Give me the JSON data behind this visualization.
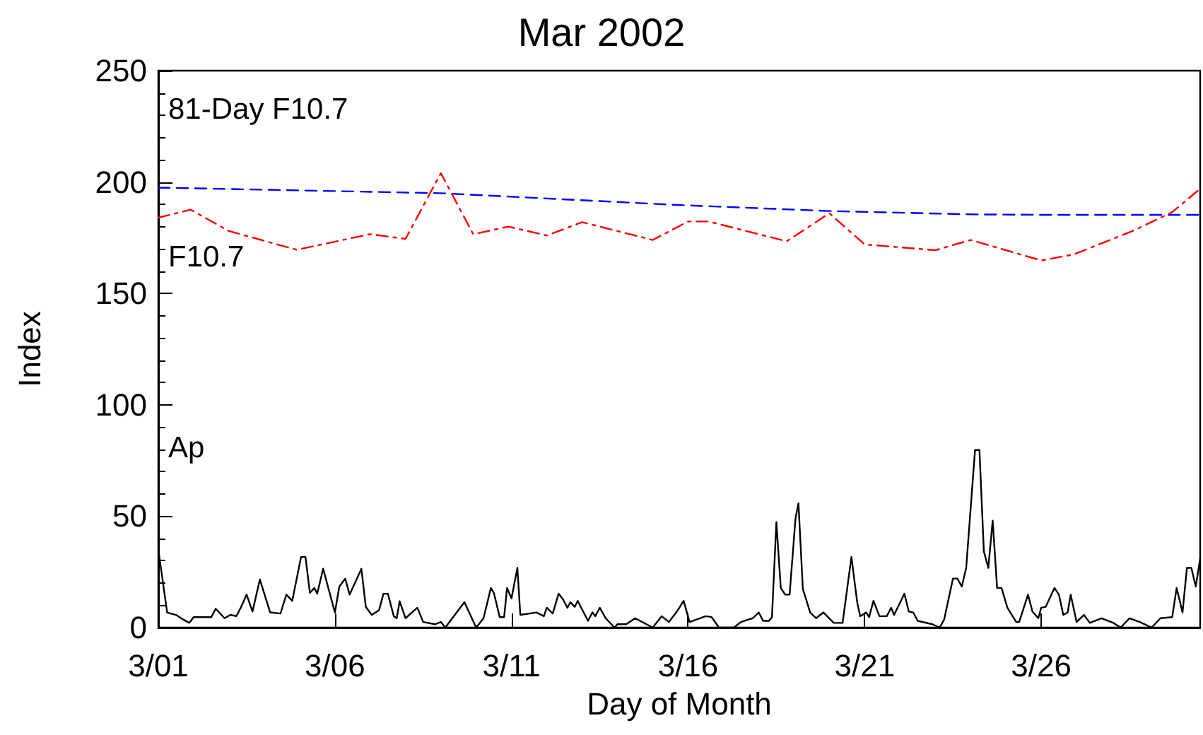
{
  "chart_data": {
    "type": "line",
    "title": "Mar 2002",
    "xlabel": "Day of Month",
    "ylabel": "Index",
    "xlim": [
      "2002-03-01T00:00",
      "2002-03-30T12:00"
    ],
    "xticks": [
      {
        "value": "2002-03-01",
        "label": "3/01"
      },
      {
        "value": "2002-03-06",
        "label": "3/06"
      },
      {
        "value": "2002-03-11",
        "label": "3/11"
      },
      {
        "value": "2002-03-16",
        "label": "3/16"
      },
      {
        "value": "2002-03-21",
        "label": "3/21"
      },
      {
        "value": "2002-03-26",
        "label": "3/26"
      }
    ],
    "ylim": [
      0,
      250
    ],
    "yticks": [
      0,
      50,
      100,
      150,
      200,
      250
    ],
    "grid": false,
    "legend": false,
    "marker": "none",
    "series": [
      {
        "name": "81-Day F10.7",
        "color": "#0000ff",
        "line_style": "dashed",
        "x": [
          "2002-03-01T00:00",
          "2002-03-09T00:00",
          "2002-03-15T17:00",
          "2002-03-20T00:00",
          "2002-03-24T00:00",
          "2002-03-26T00:00",
          "2002-03-30T12:00"
        ],
        "values": [
          197.5,
          195,
          189.7,
          187,
          185.5,
          185.3,
          185.3
        ]
      },
      {
        "name": "F10.7",
        "color": "#ff0000",
        "line_style": "dashdot",
        "x": [
          "2002-03-01T00:00",
          "2002-03-01T22:00",
          "2002-03-03T00:00",
          "2002-03-04T22:00",
          "2002-03-07T00:00",
          "2002-03-08T00:00",
          "2002-03-09T00:00",
          "2002-03-09T22:00",
          "2002-03-10T22:00",
          "2002-03-12T00:00",
          "2002-03-13T00:00",
          "2002-03-15T00:00",
          "2002-03-16T00:00",
          "2002-03-16T14:00",
          "2002-03-18T19:00",
          "2002-03-20T00:00",
          "2002-03-21T00:00",
          "2002-03-23T00:00",
          "2002-03-24T00:00",
          "2002-03-26T00:00",
          "2002-03-26T22:00",
          "2002-03-28T14:00",
          "2002-03-29T17:00",
          "2002-03-30T12:00"
        ],
        "values": [
          184,
          187.6,
          178,
          169.6,
          176.6,
          174.5,
          204,
          176.6,
          180,
          176,
          182,
          174,
          182.3,
          182.3,
          173.4,
          186,
          172,
          169.4,
          174,
          164.8,
          167.5,
          178,
          186.5,
          197
        ]
      },
      {
        "name": "Ap",
        "color": "#000000",
        "line_style": "solid",
        "x": [
          "2002-03-01T00:00",
          "2002-03-01T06:00",
          "2002-03-01T12:00",
          "2002-03-01T17:00",
          "2002-03-01T21:00",
          "2002-03-02T00:00",
          "2002-03-02T12:00",
          "2002-03-02T15:00",
          "2002-03-02T21:00",
          "2002-03-03T01:00",
          "2002-03-03T05:00",
          "2002-03-03T08:00",
          "2002-03-03T12:00",
          "2002-03-03T16:00",
          "2002-03-03T21:00",
          "2002-03-04T04:00",
          "2002-03-04T11:00",
          "2002-03-04T15:00",
          "2002-03-04T19:00",
          "2002-03-05T01:00",
          "2002-03-05T04:00",
          "2002-03-05T07:00",
          "2002-03-05T10:00",
          "2002-03-05T12:00",
          "2002-03-05T16:00",
          "2002-03-06T00:00",
          "2002-03-06T03:00",
          "2002-03-06T07:00",
          "2002-03-06T10:00",
          "2002-03-06T18:00",
          "2002-03-06T21:00",
          "2002-03-07T01:00",
          "2002-03-07T06:00",
          "2002-03-07T09:00",
          "2002-03-07T12:00",
          "2002-03-07T16:00",
          "2002-03-07T18:00",
          "2002-03-07T20:00",
          "2002-03-08T00:00",
          "2002-03-08T08:00",
          "2002-03-08T12:00",
          "2002-03-08T20:00",
          "2002-03-09T00:00",
          "2002-03-09T03:00",
          "2002-03-09T16:00",
          "2002-03-10T00:00",
          "2002-03-10T05:00",
          "2002-03-10T10:00",
          "2002-03-10T12:00",
          "2002-03-10T16:00",
          "2002-03-10T19:00",
          "2002-03-10T21:00",
          "2002-03-11T00:00",
          "2002-03-11T04:00",
          "2002-03-11T06:00",
          "2002-03-11T17:00",
          "2002-03-11T22:00",
          "2002-03-12T00:00",
          "2002-03-12T04:00",
          "2002-03-12T08:00",
          "2002-03-12T11:00",
          "2002-03-12T14:00",
          "2002-03-12T16:00",
          "2002-03-12T19:00",
          "2002-03-12T21:00",
          "2002-03-13T04:00",
          "2002-03-13T07:00",
          "2002-03-13T09:00",
          "2002-03-13T12:00",
          "2002-03-13T16:00",
          "2002-03-13T22:00",
          "2002-03-14T00:00",
          "2002-03-14T06:00",
          "2002-03-14T12:00",
          "2002-03-15T00:00",
          "2002-03-15T06:00",
          "2002-03-15T11:00",
          "2002-03-15T17:00",
          "2002-03-15T21:00",
          "2002-03-16T01:00",
          "2002-03-16T12:00",
          "2002-03-16T16:00",
          "2002-03-16T21:00",
          "2002-03-17T07:00",
          "2002-03-17T12:00",
          "2002-03-17T17:00",
          "2002-03-17T20:00",
          "2002-03-18T00:00",
          "2002-03-18T03:00",
          "2002-03-18T07:00",
          "2002-03-18T09:00",
          "2002-03-18T12:00",
          "2002-03-18T15:00",
          "2002-03-18T18:00",
          "2002-03-18T21:00",
          "2002-03-19T01:00",
          "2002-03-19T03:00",
          "2002-03-19T06:00",
          "2002-03-19T11:00",
          "2002-03-19T15:00",
          "2002-03-19T20:00",
          "2002-03-20T03:00",
          "2002-03-20T09:00",
          "2002-03-20T15:00",
          "2002-03-20T19:00",
          "2002-03-20T21:00",
          "2002-03-21T01:00",
          "2002-03-21T03:00",
          "2002-03-21T06:00",
          "2002-03-21T10:00",
          "2002-03-21T15:00",
          "2002-03-21T18:00",
          "2002-03-21T20:00",
          "2002-03-22T03:00",
          "2002-03-22T06:00",
          "2002-03-22T09:00",
          "2002-03-22T12:00",
          "2002-03-22T22:00",
          "2002-03-23T03:00",
          "2002-03-23T06:00",
          "2002-03-23T12:00",
          "2002-03-23T15:00",
          "2002-03-23T18:00",
          "2002-03-23T21:00",
          "2002-03-24T03:00",
          "2002-03-24T06:00",
          "2002-03-24T09:00",
          "2002-03-24T12:00",
          "2002-03-24T15:00",
          "2002-03-24T18:00",
          "2002-03-24T21:00",
          "2002-03-25T01:00",
          "2002-03-25T07:00",
          "2002-03-25T09:00",
          "2002-03-25T15:00",
          "2002-03-25T18:00",
          "2002-03-25T22:00",
          "2002-03-26T00:00",
          "2002-03-26T03:00",
          "2002-03-26T09:00",
          "2002-03-26T12:00",
          "2002-03-26T15:00",
          "2002-03-26T18:00",
          "2002-03-26T20:00",
          "2002-03-27T00:00",
          "2002-03-27T05:00",
          "2002-03-27T09:00",
          "2002-03-27T17:00",
          "2002-03-28T01:00",
          "2002-03-28T06:00",
          "2002-03-28T12:00",
          "2002-03-28T19:00",
          "2002-03-29T03:00",
          "2002-03-29T09:00",
          "2002-03-29T17:00",
          "2002-03-29T20:00",
          "2002-03-30T00:00",
          "2002-03-30T03:00",
          "2002-03-30T06:00",
          "2002-03-30T09:00",
          "2002-03-30T12:00"
        ],
        "values": [
          35,
          6.8,
          5.7,
          3.6,
          2.1,
          4.7,
          4.7,
          8.5,
          4.2,
          5.7,
          5.1,
          8.9,
          14.8,
          7.2,
          21.6,
          6.8,
          6.3,
          14.8,
          12,
          31.7,
          31.7,
          15.6,
          17.8,
          15.2,
          26.4,
          6.8,
          18.4,
          22,
          14.8,
          26.4,
          9.3,
          5.7,
          7.8,
          15.2,
          15.2,
          5.1,
          4.2,
          11.8,
          4.2,
          8.9,
          2.5,
          1.5,
          2.5,
          0,
          11.4,
          0,
          4.2,
          17.8,
          15.6,
          4.7,
          4.7,
          17.8,
          13.1,
          26.8,
          5.7,
          6.8,
          5.1,
          8.9,
          6.3,
          15.2,
          12.7,
          8.9,
          11.4,
          9.3,
          12,
          3,
          6.8,
          5.1,
          8.9,
          4.2,
          0,
          1.5,
          1.5,
          4.2,
          0,
          5.1,
          2.5,
          7.8,
          12,
          2.5,
          5.1,
          4.7,
          0,
          0,
          2.5,
          3.6,
          4.2,
          6.8,
          3,
          3,
          4.7,
          47.4,
          17.8,
          14.8,
          14.8,
          49,
          55.8,
          17.3,
          6.8,
          4.2,
          6.8,
          2.1,
          2.1,
          31.7,
          11,
          5.1,
          6.8,
          4.7,
          12,
          5.1,
          5.1,
          8.9,
          5.7,
          15.2,
          7.2,
          6.8,
          3,
          1.5,
          0,
          3.6,
          22,
          22,
          18.4,
          26.8,
          79.7,
          79.7,
          34.2,
          26.8,
          48,
          17.8,
          17.8,
          8.9,
          2.5,
          2.5,
          14.8,
          7.2,
          4.2,
          8.9,
          9.3,
          17.8,
          14.8,
          5.7,
          6.8,
          14.8,
          2.5,
          5.7,
          2.1,
          4.2,
          2.1,
          0,
          4.2,
          2.5,
          0,
          4.2,
          4.7,
          17.8,
          6.8,
          26.8,
          26.8,
          18.4,
          31
        ]
      }
    ]
  }
}
